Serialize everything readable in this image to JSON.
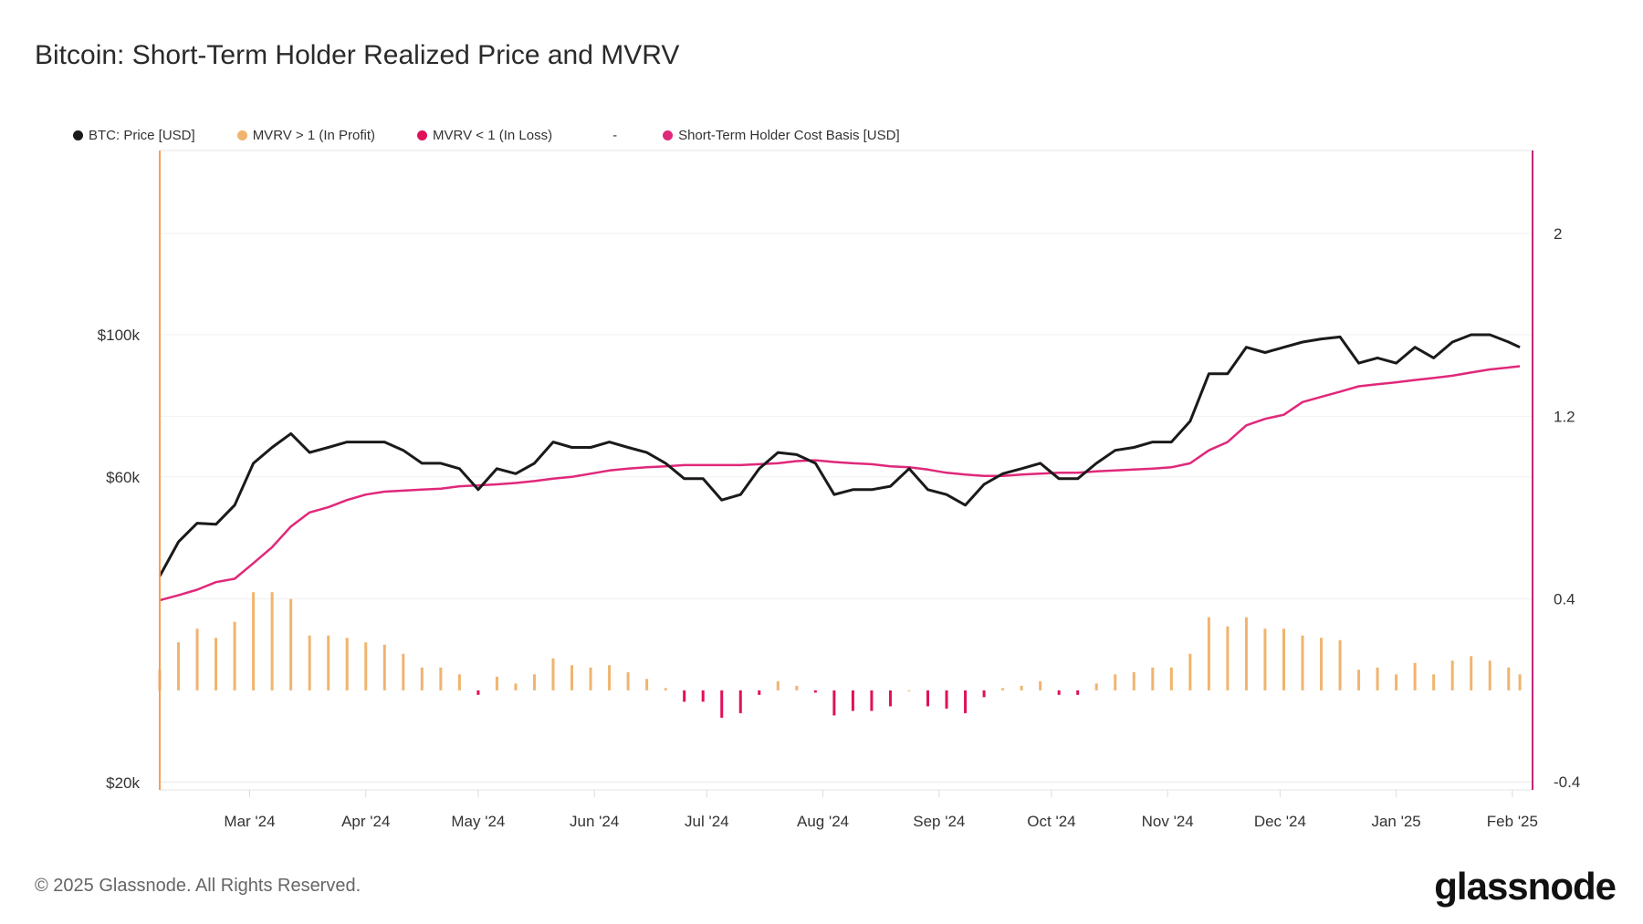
{
  "header": {
    "title": "Bitcoin: Short-Term Holder Realized Price and MVRV"
  },
  "footer": {
    "copyright": "© 2025 Glassnode. All Rights Reserved.",
    "logo": "glassnode"
  },
  "colors": {
    "price": "#1a1a1a",
    "profit": "#f0b46e",
    "loss": "#e0105a",
    "cost_basis": "#e0287a",
    "left_axis": "#f5a05a",
    "right_axis": "#c0267a"
  },
  "legend": [
    {
      "label": "BTC: Price [USD]",
      "color": "#1a1a1a"
    },
    {
      "label": "MVRV > 1 (In Profit)",
      "color": "#f0b46e"
    },
    {
      "label": "MVRV < 1 (In Loss)",
      "color": "#e0105a"
    },
    {
      "label": "-",
      "color": ""
    },
    {
      "label": "Short-Term Holder Cost Basis [USD]",
      "color": "#e0287a"
    }
  ],
  "chart_data": {
    "type": "line",
    "title": "Bitcoin: Short-Term Holder Realized Price and MVRV",
    "y_left": {
      "scale": "log",
      "ticks": [
        20000,
        60000,
        100000
      ],
      "tick_labels": [
        "$20k",
        "$60k",
        "$100k"
      ]
    },
    "y_right": {
      "scale": "linear",
      "range": [
        -0.4,
        2.4
      ],
      "ticks": [
        -0.4,
        0.4,
        1.2,
        2
      ],
      "tick_labels": [
        "-0.4",
        "0.4",
        "1.2",
        "2"
      ]
    },
    "x_tick_labels": [
      "Mar '24",
      "Apr '24",
      "May '24",
      "Jun '24",
      "Jul '24",
      "Aug '24",
      "Sep '24",
      "Oct '24",
      "Nov '24",
      "Dec '24",
      "Jan '25",
      "Feb '25"
    ],
    "grid": true,
    "legend_position": "top-left",
    "x": [
      "2024-02-06",
      "2024-02-11",
      "2024-02-16",
      "2024-02-21",
      "2024-02-26",
      "2024-03-02",
      "2024-03-07",
      "2024-03-12",
      "2024-03-17",
      "2024-03-22",
      "2024-03-27",
      "2024-04-01",
      "2024-04-06",
      "2024-04-11",
      "2024-04-16",
      "2024-04-21",
      "2024-04-26",
      "2024-05-01",
      "2024-05-06",
      "2024-05-11",
      "2024-05-16",
      "2024-05-21",
      "2024-05-26",
      "2024-05-31",
      "2024-06-05",
      "2024-06-10",
      "2024-06-15",
      "2024-06-20",
      "2024-06-25",
      "2024-06-30",
      "2024-07-05",
      "2024-07-10",
      "2024-07-15",
      "2024-07-20",
      "2024-07-25",
      "2024-07-30",
      "2024-08-04",
      "2024-08-09",
      "2024-08-14",
      "2024-08-19",
      "2024-08-24",
      "2024-08-29",
      "2024-09-03",
      "2024-09-08",
      "2024-09-13",
      "2024-09-18",
      "2024-09-23",
      "2024-09-28",
      "2024-10-03",
      "2024-10-08",
      "2024-10-13",
      "2024-10-18",
      "2024-10-23",
      "2024-10-28",
      "2024-11-02",
      "2024-11-07",
      "2024-11-12",
      "2024-11-17",
      "2024-11-22",
      "2024-11-27",
      "2024-12-02",
      "2024-12-07",
      "2024-12-12",
      "2024-12-17",
      "2024-12-22",
      "2024-12-27",
      "2025-01-01",
      "2025-01-06",
      "2025-01-11",
      "2025-01-16",
      "2025-01-21",
      "2025-01-26",
      "2025-01-31",
      "2025-02-03"
    ],
    "series": [
      {
        "name": "BTC: Price [USD]",
        "axis": "left",
        "values": [
          42000,
          47500,
          50800,
          50600,
          54200,
          63000,
          66700,
          70100,
          65500,
          66700,
          68000,
          68000,
          68000,
          66000,
          63000,
          63000,
          61800,
          57300,
          61800,
          60700,
          63000,
          68000,
          66700,
          66700,
          68000,
          66700,
          65500,
          63000,
          59600,
          59600,
          55200,
          56300,
          61800,
          65500,
          65000,
          63000,
          56300,
          57300,
          57300,
          58000,
          61800,
          57300,
          56300,
          54200,
          58400,
          60700,
          61800,
          63000,
          59600,
          59600,
          63000,
          66000,
          66700,
          68000,
          68000,
          73300,
          86900,
          86900,
          95600,
          93800,
          95600,
          97400,
          98500,
          99200,
          90300,
          92000,
          90300,
          95600,
          92000,
          97400,
          100000,
          100000,
          97400,
          95600
        ]
      },
      {
        "name": "MVRV",
        "axis": "right",
        "type": "bar",
        "values": [
          0.09,
          0.21,
          0.27,
          0.23,
          0.3,
          0.43,
          0.43,
          0.4,
          0.24,
          0.24,
          0.23,
          0.21,
          0.2,
          0.16,
          0.1,
          0.1,
          0.07,
          -0.02,
          0.06,
          0.03,
          0.07,
          0.14,
          0.11,
          0.1,
          0.11,
          0.08,
          0.05,
          0.01,
          -0.05,
          -0.05,
          -0.12,
          -0.1,
          -0.02,
          0.04,
          0.02,
          -0.01,
          -0.11,
          -0.09,
          -0.09,
          -0.07,
          0.0,
          -0.07,
          -0.08,
          -0.1,
          -0.03,
          0.01,
          0.02,
          0.04,
          -0.02,
          -0.02,
          0.03,
          0.07,
          0.08,
          0.1,
          0.1,
          0.16,
          0.32,
          0.28,
          0.32,
          0.27,
          0.27,
          0.24,
          0.23,
          0.22,
          0.09,
          0.1,
          0.07,
          0.12,
          0.07,
          0.13,
          0.15,
          0.13,
          0.1,
          0.07
        ]
      },
      {
        "name": "Short-Term Holder Cost Basis [USD]",
        "axis": "left",
        "values": [
          38500,
          39200,
          40000,
          41100,
          41600,
          44000,
          46600,
          50200,
          52800,
          53800,
          55200,
          56300,
          56900,
          57100,
          57300,
          57500,
          58000,
          58200,
          58400,
          58700,
          59100,
          59600,
          60000,
          60700,
          61400,
          61800,
          62100,
          62300,
          62600,
          62600,
          62600,
          62600,
          62800,
          63000,
          63500,
          63700,
          63300,
          63000,
          62800,
          62300,
          62100,
          61600,
          60900,
          60500,
          60200,
          60200,
          60500,
          60700,
          60900,
          60900,
          61200,
          61400,
          61600,
          61800,
          62100,
          63000,
          66000,
          68000,
          72200,
          73900,
          75000,
          78500,
          80000,
          81500,
          83100,
          83700,
          84300,
          85000,
          85600,
          86300,
          87300,
          88300,
          88900,
          89300
        ]
      }
    ]
  }
}
